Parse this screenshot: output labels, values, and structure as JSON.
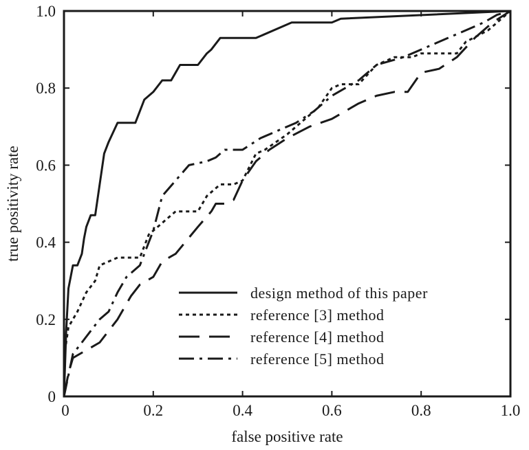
{
  "chart_data": {
    "type": "line",
    "title": "",
    "xlabel": "false positive rate",
    "ylabel": "true positivity rate",
    "xlim": [
      0,
      1
    ],
    "ylim": [
      0,
      1
    ],
    "xticks": [
      0,
      0.2,
      0.4,
      0.6,
      0.8,
      1.0
    ],
    "xtick_labels": [
      "0",
      "0.2",
      "0.4",
      "0.6",
      "0.8",
      "1.0"
    ],
    "yticks": [
      0,
      0.2,
      0.4,
      0.6,
      0.8,
      1.0
    ],
    "ytick_labels": [
      "0",
      "0.2",
      "0.4",
      "0.6",
      "0.8",
      "1.0"
    ],
    "grid": false,
    "legend_position": "bottom-right",
    "series": [
      {
        "name": "design method of this paper",
        "style": "solid",
        "color": "#1a1a1a",
        "x": [
          0,
          0.005,
          0.01,
          0.02,
          0.03,
          0.04,
          0.045,
          0.05,
          0.06,
          0.07,
          0.08,
          0.09,
          0.1,
          0.12,
          0.16,
          0.18,
          0.2,
          0.22,
          0.24,
          0.26,
          0.3,
          0.32,
          0.33,
          0.35,
          0.39,
          0.43,
          0.51,
          0.54,
          0.6,
          0.62,
          1.0
        ],
        "y": [
          0,
          0.17,
          0.28,
          0.34,
          0.34,
          0.37,
          0.41,
          0.44,
          0.47,
          0.47,
          0.55,
          0.63,
          0.66,
          0.71,
          0.71,
          0.77,
          0.79,
          0.82,
          0.82,
          0.86,
          0.86,
          0.89,
          0.9,
          0.93,
          0.93,
          0.93,
          0.97,
          0.97,
          0.97,
          0.98,
          1.0
        ]
      },
      {
        "name": "reference [3] method",
        "style": "dotted",
        "color": "#1a1a1a",
        "x": [
          0,
          0.01,
          0.03,
          0.05,
          0.07,
          0.08,
          0.1,
          0.12,
          0.14,
          0.16,
          0.17,
          0.19,
          0.22,
          0.25,
          0.3,
          0.32,
          0.35,
          0.38,
          0.4,
          0.43,
          0.45,
          0.5,
          0.53,
          0.57,
          0.6,
          0.62,
          0.66,
          0.7,
          0.74,
          0.78,
          0.8,
          0.84,
          0.88,
          0.9,
          0.95,
          1.0
        ],
        "y": [
          0.1,
          0.18,
          0.22,
          0.27,
          0.3,
          0.34,
          0.35,
          0.36,
          0.36,
          0.36,
          0.36,
          0.42,
          0.45,
          0.48,
          0.48,
          0.52,
          0.55,
          0.55,
          0.56,
          0.63,
          0.64,
          0.68,
          0.71,
          0.75,
          0.8,
          0.81,
          0.81,
          0.86,
          0.88,
          0.88,
          0.89,
          0.89,
          0.89,
          0.92,
          0.95,
          1.0
        ]
      },
      {
        "name": "reference [4] method",
        "style": "dashed",
        "color": "#1a1a1a",
        "x": [
          0,
          0.01,
          0.02,
          0.05,
          0.08,
          0.1,
          0.12,
          0.15,
          0.17,
          0.2,
          0.22,
          0.25,
          0.3,
          0.33,
          0.34,
          0.36,
          0.38,
          0.4,
          0.43,
          0.46,
          0.5,
          0.55,
          0.6,
          0.66,
          0.7,
          0.74,
          0.77,
          0.8,
          0.84,
          0.88,
          0.92,
          0.96,
          1.0
        ],
        "y": [
          0,
          0.06,
          0.1,
          0.12,
          0.14,
          0.17,
          0.2,
          0.26,
          0.29,
          0.31,
          0.35,
          0.37,
          0.44,
          0.48,
          0.5,
          0.5,
          0.51,
          0.56,
          0.61,
          0.64,
          0.67,
          0.7,
          0.72,
          0.76,
          0.78,
          0.79,
          0.79,
          0.84,
          0.85,
          0.88,
          0.93,
          0.97,
          1.0
        ]
      },
      {
        "name": "reference [5] method",
        "style": "dash-dot",
        "color": "#1a1a1a",
        "x": [
          0,
          0.02,
          0.04,
          0.06,
          0.08,
          0.1,
          0.12,
          0.14,
          0.17,
          0.2,
          0.22,
          0.25,
          0.28,
          0.32,
          0.34,
          0.36,
          0.4,
          0.44,
          0.48,
          0.52,
          0.56,
          0.6,
          0.66,
          0.7,
          0.76,
          0.8,
          0.86,
          0.9,
          0.94,
          0.97,
          1.0
        ],
        "y": [
          0,
          0.11,
          0.14,
          0.17,
          0.2,
          0.22,
          0.27,
          0.31,
          0.34,
          0.43,
          0.52,
          0.56,
          0.6,
          0.61,
          0.62,
          0.64,
          0.64,
          0.67,
          0.69,
          0.71,
          0.74,
          0.78,
          0.82,
          0.86,
          0.88,
          0.9,
          0.93,
          0.95,
          0.97,
          0.99,
          1.0
        ]
      }
    ]
  }
}
